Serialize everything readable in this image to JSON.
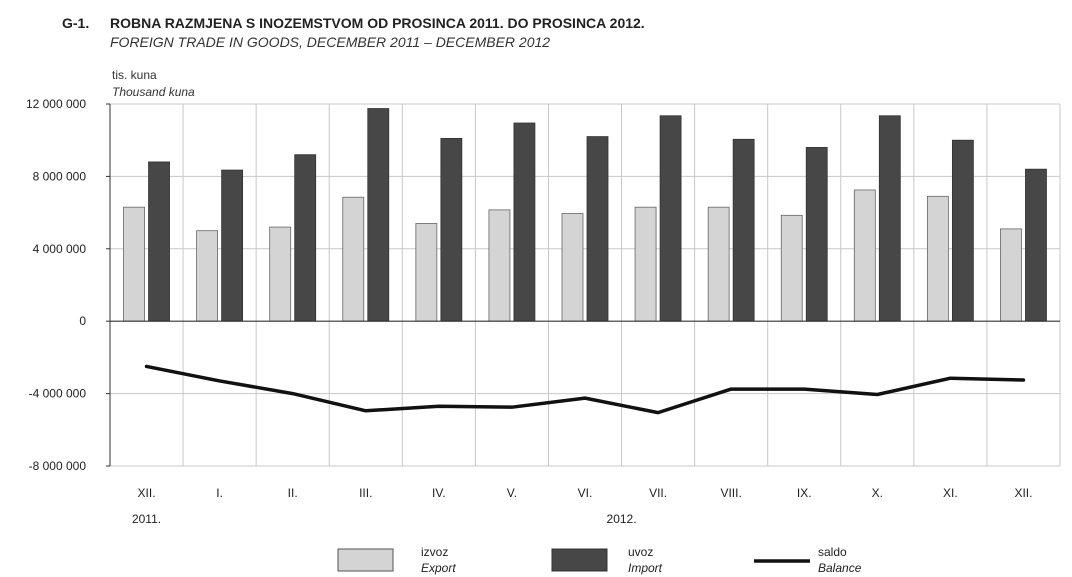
{
  "chart_data": {
    "type": "bar",
    "title_prefix": "G-1.",
    "title": "ROBNA RAZMJENA S INOZEMSTVOM OD PROSINCA 2011. DO PROSINCA 2012.",
    "subtitle": "FOREIGN TRADE IN GOODS, DECEMBER 2011 – DECEMBER 2012",
    "unit": "tis. kuna",
    "unit_en": "Thousand kuna",
    "categories": [
      "XII.",
      "I.",
      "II.",
      "III.",
      "IV.",
      "V.",
      "VI.",
      "VII.",
      "VIII.",
      "IX.",
      "X.",
      "XI.",
      "XII."
    ],
    "year_labels": [
      {
        "label": "2011.",
        "category_index": 0
      },
      {
        "label": "2012.",
        "category_index": 6.5
      }
    ],
    "ylim": [
      -8000000,
      12000000
    ],
    "yticks": [
      12000000,
      8000000,
      4000000,
      0,
      -4000000,
      -8000000
    ],
    "ytick_labels": [
      "12 000 000",
      "8 000 000",
      "4 000 000",
      "0",
      "-4 000 000",
      "-8 000 000"
    ],
    "grid": true,
    "legend_position": "bottom",
    "series": [
      {
        "name": "izvoz",
        "name_en": "Export",
        "kind": "bar",
        "color": "#d4d4d4",
        "values": [
          6300000,
          5000000,
          5200000,
          6850000,
          5400000,
          6150000,
          5950000,
          6300000,
          6300000,
          5850000,
          7250000,
          6900000,
          5100000
        ]
      },
      {
        "name": "uvoz",
        "name_en": "Import",
        "kind": "bar",
        "color": "#474747",
        "values": [
          8800000,
          8350000,
          9200000,
          11750000,
          10100000,
          10950000,
          10200000,
          11350000,
          10050000,
          9600000,
          11350000,
          10000000,
          8400000
        ]
      },
      {
        "name": "saldo",
        "name_en": "Balance",
        "kind": "line",
        "color": "#111111",
        "values": [
          -2500000,
          -3300000,
          -4000000,
          -4950000,
          -4700000,
          -4750000,
          -4250000,
          -5050000,
          -3750000,
          -3750000,
          -4050000,
          -3150000,
          -3250000
        ]
      }
    ]
  }
}
